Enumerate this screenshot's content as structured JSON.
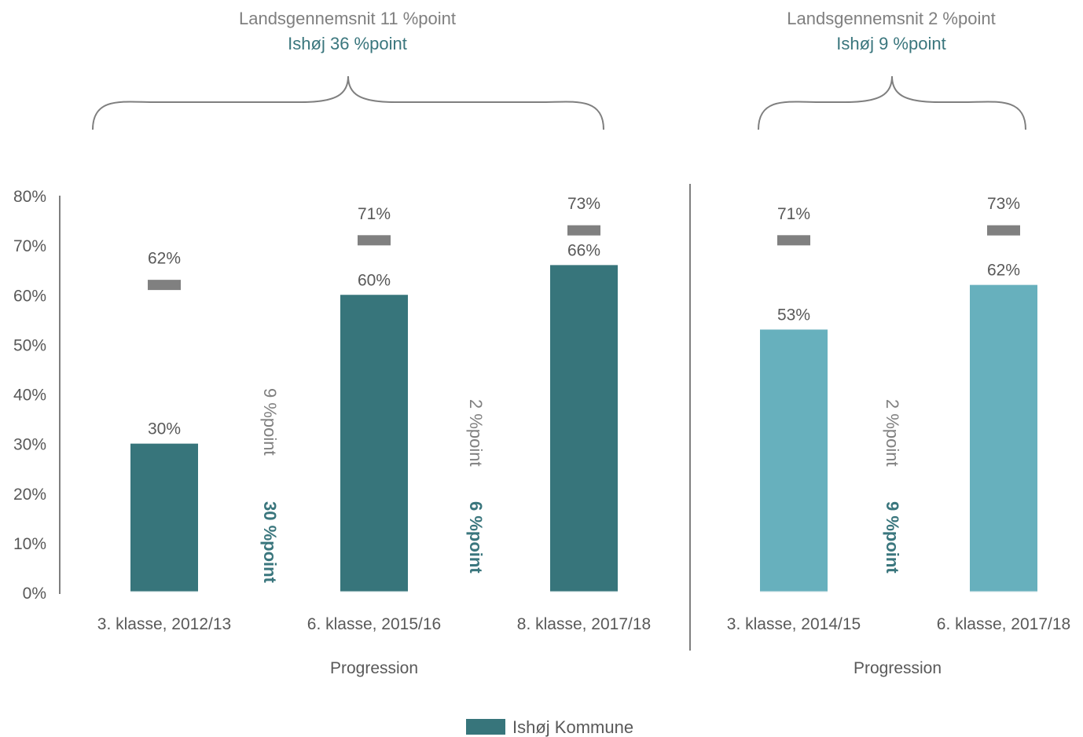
{
  "colors": {
    "ishoj_dark": "#37757b",
    "ishoj_light": "#67b0bd",
    "national_marker": "#808080",
    "axis": "#7f7f7f",
    "text": "#595959",
    "local_text": "#3a767d"
  },
  "chart_data": {
    "type": "bar",
    "y_ticks": [
      "0%",
      "10%",
      "20%",
      "30%",
      "40%",
      "50%",
      "60%",
      "70%",
      "80%"
    ],
    "ylim": [
      0,
      80
    ],
    "groups": [
      {
        "header_national": "Landsgennemsnit 11 %point",
        "header_local": "Ishøj 36 %point",
        "xlabel": "Progression",
        "bar_color": "#37757b",
        "categories": [
          "3. klasse, 2012/13",
          "6. klasse, 2015/16",
          "8. klasse, 2017/18"
        ],
        "ishoj_values": [
          30,
          60,
          66
        ],
        "ishoj_labels": [
          "30%",
          "60%",
          "66%"
        ],
        "national_values": [
          62,
          71,
          73
        ],
        "national_labels": [
          "62%",
          "71%",
          "73%"
        ],
        "progressions": [
          {
            "national": "9 %point",
            "local": "30 %point"
          },
          {
            "national": "2 %point",
            "local": "6 %point"
          }
        ]
      },
      {
        "header_national": "Landsgennemsnit 2 %point",
        "header_local": "Ishøj 9 %point",
        "xlabel": "Progression",
        "bar_color": "#67b0bd",
        "categories": [
          "3. klasse, 2014/15",
          "6. klasse, 2017/18"
        ],
        "ishoj_values": [
          53,
          62
        ],
        "ishoj_labels": [
          "53%",
          "62%"
        ],
        "national_values": [
          71,
          73
        ],
        "national_labels": [
          "71%",
          "73%"
        ],
        "progressions": [
          {
            "national": "2 %point",
            "local": "9 %point"
          }
        ]
      }
    ],
    "legend": {
      "label": "Ishøj Kommune",
      "color": "#37757b",
      "placement": "bottom"
    }
  }
}
